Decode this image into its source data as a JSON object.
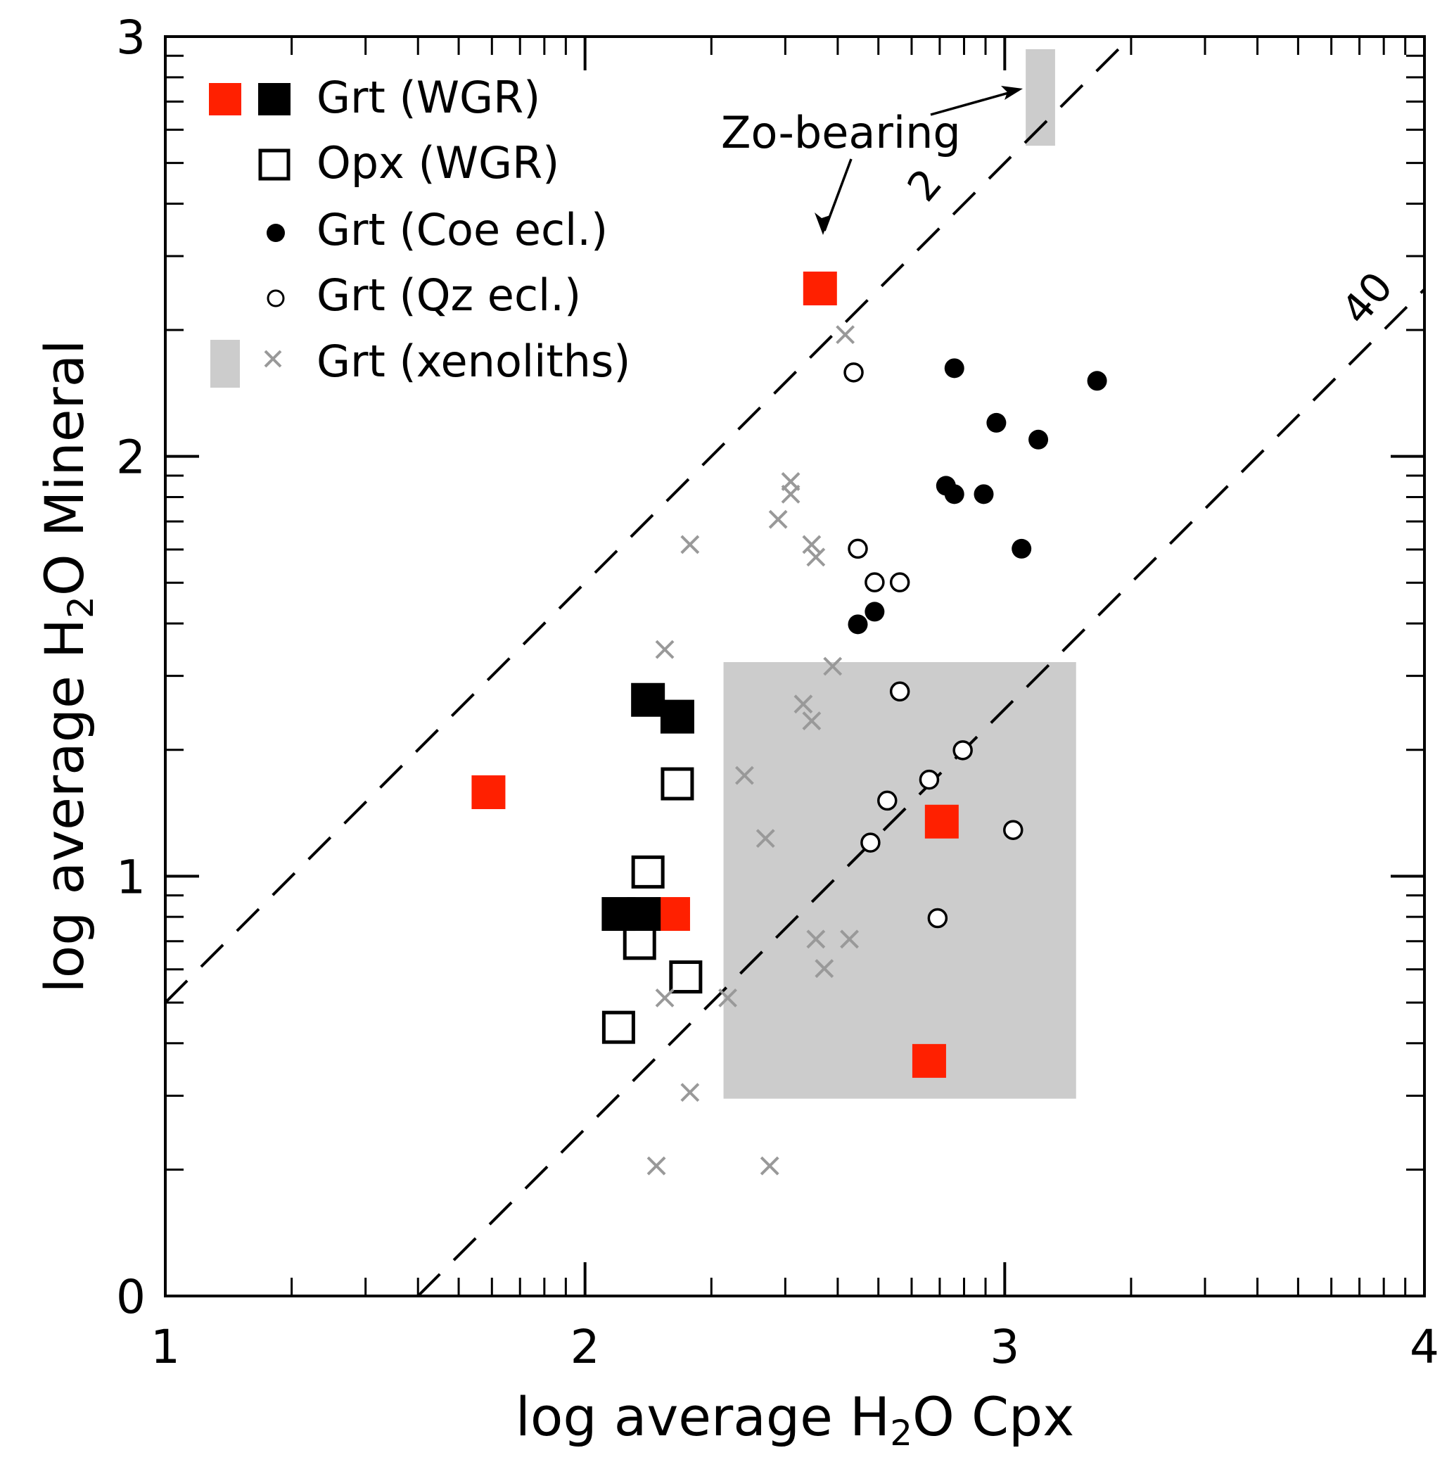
{
  "chart_data": {
    "type": "scatter",
    "title": "",
    "xlabel": "log average H₂O Cpx",
    "xlabel_parts": {
      "pre": "log average H",
      "sub": "2",
      "post": "O Cpx"
    },
    "ylabel": "log average H₂O Mineral",
    "ylabel_parts": {
      "pre": "log average H",
      "sub": "2",
      "post": "O Mineral"
    },
    "xlim": [
      1,
      4
    ],
    "ylim": [
      0,
      3
    ],
    "xticks": [
      1,
      2,
      3,
      4
    ],
    "xtick_labels": [
      "1",
      "2",
      "3",
      "4"
    ],
    "yticks": [
      0,
      1,
      2,
      3
    ],
    "ytick_labels": [
      "0",
      "1",
      "2",
      "3"
    ],
    "minor_ticks": "log-spaced within each unit (n + log10(k), k = 2..9) on both axes",
    "grid": false,
    "legend_position": "top-left",
    "colors": {
      "red": "#ff2000",
      "black": "#000000",
      "gray_cross": "#999999",
      "gray_fill": "#cccccc"
    },
    "legend": [
      {
        "label": "Grt (WGR)",
        "symbols": [
          "red-square",
          "black-square"
        ]
      },
      {
        "label": "Opx (WGR)",
        "symbols": [
          "open-square"
        ]
      },
      {
        "label": "Grt (Coe ecl.)",
        "symbols": [
          "black-circle"
        ]
      },
      {
        "label": "Grt (Qz ecl.)",
        "symbols": [
          "open-circle"
        ]
      },
      {
        "label": "Grt (xenoliths)",
        "symbols": [
          "gray-rect",
          "gray-cross"
        ]
      }
    ],
    "reference_lines": [
      {
        "ratio": 2,
        "label": "2",
        "offset_log": 0.301,
        "style": "dashed"
      },
      {
        "ratio": 40,
        "label": "40",
        "offset_log": 1.602,
        "style": "dashed"
      }
    ],
    "shaded_regions": [
      {
        "name": "xenolith-range",
        "x": [
          2.33,
          3.17
        ],
        "y": [
          0.47,
          1.51
        ],
        "color": "#cccccc"
      },
      {
        "name": "zo-bearing-xenolith-range",
        "x": [
          3.05,
          3.12
        ],
        "y": [
          2.74,
          2.97
        ],
        "color": "#cccccc"
      }
    ],
    "annotations": [
      {
        "text": "Zo-bearing",
        "at": [
          2.93,
          2.81
        ],
        "arrows_to": [
          [
            2.56,
            2.48
          ],
          [
            3.05,
            2.88
          ]
        ]
      }
    ],
    "series": [
      {
        "name": "Grt (WGR) Zo-bearing/red",
        "marker": "filled-square",
        "color": "#ff2000",
        "points": [
          [
            2.56,
            2.4
          ],
          [
            1.77,
            1.2
          ],
          [
            2.21,
            0.91
          ],
          [
            2.85,
            1.13
          ],
          [
            2.82,
            0.56
          ]
        ]
      },
      {
        "name": "Grt (WGR) black",
        "marker": "filled-square",
        "color": "#000000",
        "points": [
          [
            2.15,
            1.42
          ],
          [
            2.22,
            1.38
          ],
          [
            2.08,
            0.91
          ],
          [
            2.14,
            0.91
          ]
        ]
      },
      {
        "name": "Opx (WGR)",
        "marker": "open-square",
        "color": "#000000",
        "points": [
          [
            2.22,
            1.22
          ],
          [
            2.15,
            1.01
          ],
          [
            2.13,
            0.84
          ],
          [
            2.24,
            0.76
          ],
          [
            2.08,
            0.64
          ]
        ]
      },
      {
        "name": "Grt (Coe ecl.)",
        "marker": "filled-circle",
        "color": "#000000",
        "points": [
          [
            2.88,
            2.21
          ],
          [
            3.22,
            2.18
          ],
          [
            2.98,
            2.08
          ],
          [
            3.08,
            2.04
          ],
          [
            2.86,
            1.93
          ],
          [
            2.88,
            1.91
          ],
          [
            2.95,
            1.91
          ],
          [
            3.04,
            1.78
          ],
          [
            2.69,
            1.63
          ],
          [
            2.65,
            1.6
          ]
        ]
      },
      {
        "name": "Grt (Qz ecl.)",
        "marker": "open-circle",
        "color": "#000000",
        "points": [
          [
            2.64,
            2.2
          ],
          [
            2.65,
            1.78
          ],
          [
            2.69,
            1.7
          ],
          [
            2.75,
            1.7
          ],
          [
            2.75,
            1.44
          ],
          [
            2.9,
            1.3
          ],
          [
            2.82,
            1.23
          ],
          [
            2.72,
            1.18
          ],
          [
            3.02,
            1.11
          ],
          [
            2.68,
            1.08
          ],
          [
            2.84,
            0.9
          ]
        ]
      },
      {
        "name": "Grt (xenoliths)",
        "marker": "cross",
        "color": "#999999",
        "points": [
          [
            2.62,
            2.29
          ],
          [
            2.49,
            1.94
          ],
          [
            2.49,
            1.91
          ],
          [
            2.46,
            1.85
          ],
          [
            2.25,
            1.79
          ],
          [
            2.54,
            1.79
          ],
          [
            2.55,
            1.76
          ],
          [
            2.19,
            1.54
          ],
          [
            2.59,
            1.5
          ],
          [
            2.52,
            1.41
          ],
          [
            2.54,
            1.37
          ],
          [
            2.38,
            1.24
          ],
          [
            2.43,
            1.09
          ],
          [
            2.55,
            0.85
          ],
          [
            2.63,
            0.85
          ],
          [
            2.57,
            0.78
          ],
          [
            2.19,
            0.71
          ],
          [
            2.34,
            0.71
          ],
          [
            2.25,
            0.485
          ],
          [
            2.17,
            0.31
          ],
          [
            2.44,
            0.31
          ]
        ]
      }
    ]
  }
}
